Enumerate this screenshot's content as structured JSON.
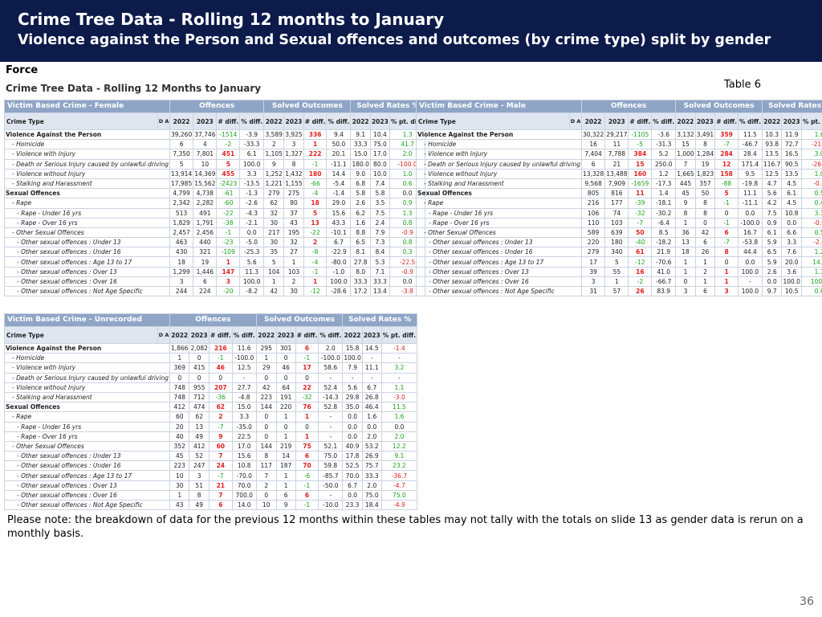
{
  "header": {
    "title": "Crime Tree Data - Rolling 12 months to January",
    "subtitle": "Violence against the Person and Sexual offences and outcomes (by crime type) split by gender"
  },
  "force_label": "Force",
  "sub_heading": "Crime Tree Data - Rolling 12 Months to January",
  "table_label": "Table 6",
  "columns": {
    "crime_type": "Crime Type",
    "offences": "Offences",
    "solved": "Solved Outcomes",
    "rates": "Solved Rates %",
    "y2022": "2022",
    "y2023": "2023",
    "diff": "# diff.",
    "pdiff": "% diff.",
    "ptdiff": "% pt. diff.",
    "da": "D A"
  },
  "tables": [
    {
      "title": "Victim Based Crime - Female",
      "rows": [
        [
          "Violence Against the Person",
          "39,260",
          "37,746",
          "-1514",
          "-3.9",
          "3,589",
          "3,925",
          "336",
          "9.4",
          "9.1",
          "10.4",
          "1.3"
        ],
        [
          "- Homicide",
          "6",
          "4",
          "-2",
          "-33.3",
          "2",
          "3",
          "1",
          "50.0",
          "33.3",
          "75.0",
          "41.7"
        ],
        [
          "- Violence with Injury",
          "7,350",
          "7,801",
          "451",
          "6.1",
          "1,105",
          "1,327",
          "222",
          "20.1",
          "15.0",
          "17.0",
          "2.0"
        ],
        [
          "- Death or Serious Injury caused by unlawful driving",
          "5",
          "10",
          "5",
          "100.0",
          "9",
          "8",
          "-1",
          "-11.1",
          "180.0",
          "80.0",
          "-100.0"
        ],
        [
          "- Violence without Injury",
          "13,914",
          "14,369",
          "455",
          "3.3",
          "1,252",
          "1,432",
          "180",
          "14.4",
          "9.0",
          "10.0",
          "1.0"
        ],
        [
          "- Stalking and Harassment",
          "17,985",
          "15,562",
          "-2423",
          "-13.5",
          "1,221",
          "1,155",
          "-66",
          "-5.4",
          "6.8",
          "7.4",
          "0.6"
        ],
        [
          "Sexual Offences",
          "4,799",
          "4,738",
          "-61",
          "-1.3",
          "279",
          "275",
          "-4",
          "-1.4",
          "5.8",
          "5.8",
          "0.0"
        ],
        [
          "- Rape",
          "2,342",
          "2,282",
          "-60",
          "-2.6",
          "62",
          "80",
          "18",
          "29.0",
          "2.6",
          "3.5",
          "0.9"
        ],
        [
          "- Rape - Under 16 yrs",
          "513",
          "491",
          "-22",
          "-4.3",
          "32",
          "37",
          "5",
          "15.6",
          "6.2",
          "7.5",
          "1.3"
        ],
        [
          "- Rape - Over 16 yrs",
          "1,829",
          "1,791",
          "-38",
          "-2.1",
          "30",
          "43",
          "13",
          "43.3",
          "1.6",
          "2.4",
          "0.8"
        ],
        [
          "- Other Sexual Offences",
          "2,457",
          "2,456",
          "-1",
          "0.0",
          "217",
          "195",
          "-22",
          "-10.1",
          "8.8",
          "7.9",
          "-0.9"
        ],
        [
          "- Other sexual offences : Under 13",
          "463",
          "440",
          "-23",
          "-5.0",
          "30",
          "32",
          "2",
          "6.7",
          "6.5",
          "7.3",
          "0.8"
        ],
        [
          "- Other sexual offences : Under 16",
          "430",
          "321",
          "-109",
          "-25.3",
          "35",
          "27",
          "-8",
          "-22.9",
          "8.1",
          "8.4",
          "0.3"
        ],
        [
          "- Other sexual offences : Age 13 to 17",
          "18",
          "19",
          "1",
          "5.6",
          "5",
          "1",
          "-4",
          "-80.0",
          "27.8",
          "5.3",
          "-22.5"
        ],
        [
          "- Other sexual offences : Over 13",
          "1,299",
          "1,446",
          "147",
          "11.3",
          "104",
          "103",
          "-1",
          "-1.0",
          "8.0",
          "7.1",
          "-0.9"
        ],
        [
          "- Other sexual offences : Over 16",
          "3",
          "6",
          "3",
          "100.0",
          "1",
          "2",
          "1",
          "100.0",
          "33.3",
          "33.3",
          "0.0"
        ],
        [
          "- Other sexual offences : Not Age Specific",
          "244",
          "224",
          "-20",
          "-8.2",
          "42",
          "30",
          "-12",
          "-28.6",
          "17.2",
          "13.4",
          "-3.8"
        ]
      ]
    },
    {
      "title": "Victim Based Crime - Male",
      "rows": [
        [
          "Violence Against the Person",
          "30,322",
          "29,217",
          "-1105",
          "-3.6",
          "3,132",
          "3,491",
          "359",
          "11.5",
          "10.3",
          "11.9",
          "1.6"
        ],
        [
          "- Homicide",
          "16",
          "11",
          "-5",
          "-31.3",
          "15",
          "8",
          "-7",
          "-46.7",
          "93.8",
          "72.7",
          "-21.0"
        ],
        [
          "- Violence with Injury",
          "7,404",
          "7,788",
          "384",
          "5.2",
          "1,000",
          "1,284",
          "284",
          "28.4",
          "13.5",
          "16.5",
          "3.0"
        ],
        [
          "- Death or Serious Injury caused by unlawful driving",
          "6",
          "21",
          "15",
          "250.0",
          "7",
          "19",
          "12",
          "171.4",
          "116.7",
          "90.5",
          "-26.2"
        ],
        [
          "- Violence without Injury",
          "13,328",
          "13,488",
          "160",
          "1.2",
          "1,665",
          "1,823",
          "158",
          "9.5",
          "12.5",
          "13.5",
          "1.0"
        ],
        [
          "- Stalking and Harassment",
          "9,568",
          "7,909",
          "-1659",
          "-17.3",
          "445",
          "357",
          "-88",
          "-19.8",
          "4.7",
          "4.5",
          "-0.1"
        ],
        [
          "Sexual Offences",
          "805",
          "816",
          "11",
          "1.4",
          "45",
          "50",
          "5",
          "11.1",
          "5.6",
          "6.1",
          "0.5"
        ],
        [
          "- Rape",
          "216",
          "177",
          "-39",
          "-18.1",
          "9",
          "8",
          "-1",
          "-11.1",
          "4.2",
          "4.5",
          "0.4"
        ],
        [
          "- Rape - Under 16 yrs",
          "106",
          "74",
          "-32",
          "-30.2",
          "8",
          "8",
          "0",
          "0.0",
          "7.5",
          "10.8",
          "3.3"
        ],
        [
          "- Rape - Over 16 yrs",
          "110",
          "103",
          "-7",
          "-6.4",
          "1",
          "0",
          "-1",
          "-100.0",
          "0.9",
          "0.0",
          "-0.9"
        ],
        [
          "- Other Sexual Offences",
          "589",
          "639",
          "50",
          "8.5",
          "36",
          "42",
          "6",
          "16.7",
          "6.1",
          "6.6",
          "0.5"
        ],
        [
          "- Other sexual offences : Under 13",
          "220",
          "180",
          "-40",
          "-18.2",
          "13",
          "6",
          "-7",
          "-53.8",
          "5.9",
          "3.3",
          "-2.6"
        ],
        [
          "- Other sexual offences : Under 16",
          "279",
          "340",
          "61",
          "21.9",
          "18",
          "26",
          "8",
          "44.4",
          "6.5",
          "7.6",
          "1.2"
        ],
        [
          "- Other sexual offences : Age 13 to 17",
          "17",
          "5",
          "-12",
          "-70.6",
          "1",
          "1",
          "0",
          "0.0",
          "5.9",
          "20.0",
          "14.1"
        ],
        [
          "- Other sexual offences : Over 13",
          "39",
          "55",
          "16",
          "41.0",
          "1",
          "2",
          "1",
          "100.0",
          "2.6",
          "3.6",
          "1.1"
        ],
        [
          "- Other sexual offences : Over 16",
          "3",
          "1",
          "-2",
          "-66.7",
          "0",
          "1",
          "1",
          "-",
          "0.0",
          "100.0",
          "100.0"
        ],
        [
          "- Other sexual offences : Not Age Specific",
          "31",
          "57",
          "26",
          "83.9",
          "3",
          "6",
          "3",
          "100.0",
          "9.7",
          "10.5",
          "0.8"
        ]
      ]
    },
    {
      "title": "Victim Based Crime - Unrecorded",
      "rows": [
        [
          "Violence Against the Person",
          "1,866",
          "2,082",
          "216",
          "11.6",
          "295",
          "301",
          "6",
          "2.0",
          "15.8",
          "14.5",
          "-1.4"
        ],
        [
          "- Homicide",
          "1",
          "0",
          "-1",
          "-100.0",
          "1",
          "0",
          "-1",
          "-100.0",
          "100.0",
          "-",
          "-"
        ],
        [
          "- Violence with Injury",
          "369",
          "415",
          "46",
          "12.5",
          "29",
          "46",
          "17",
          "58.6",
          "7.9",
          "11.1",
          "3.2"
        ],
        [
          "- Death or Serious Injury caused by unlawful driving",
          "0",
          "0",
          "0",
          "-",
          "0",
          "0",
          "0",
          "-",
          "-",
          "-",
          "-"
        ],
        [
          "- Violence without Injury",
          "748",
          "955",
          "207",
          "27.7",
          "42",
          "64",
          "22",
          "52.4",
          "5.6",
          "6.7",
          "1.1"
        ],
        [
          "- Stalking and Harassment",
          "748",
          "712",
          "-36",
          "-4.8",
          "223",
          "191",
          "-32",
          "-14.3",
          "29.8",
          "26.8",
          "-3.0"
        ],
        [
          "Sexual Offences",
          "412",
          "474",
          "62",
          "15.0",
          "144",
          "220",
          "76",
          "52.8",
          "35.0",
          "46.4",
          "11.5"
        ],
        [
          "- Rape",
          "60",
          "62",
          "2",
          "3.3",
          "0",
          "1",
          "1",
          "-",
          "0.0",
          "1.6",
          "1.6"
        ],
        [
          "- Rape - Under 16 yrs",
          "20",
          "13",
          "-7",
          "-35.0",
          "0",
          "0",
          "0",
          "-",
          "0.0",
          "0.0",
          "0.0"
        ],
        [
          "- Rape - Over 16 yrs",
          "40",
          "49",
          "9",
          "22.5",
          "0",
          "1",
          "1",
          "-",
          "0.0",
          "2.0",
          "2.0"
        ],
        [
          "- Other Sexual Offences",
          "352",
          "412",
          "60",
          "17.0",
          "144",
          "219",
          "75",
          "52.1",
          "40.9",
          "53.2",
          "12.2"
        ],
        [
          "- Other sexual offences : Under 13",
          "45",
          "52",
          "7",
          "15.6",
          "8",
          "14",
          "6",
          "75.0",
          "17.8",
          "26.9",
          "9.1"
        ],
        [
          "- Other sexual offences : Under 16",
          "223",
          "247",
          "24",
          "10.8",
          "117",
          "187",
          "70",
          "59.8",
          "52.5",
          "75.7",
          "23.2"
        ],
        [
          "- Other sexual offences : Age 13 to 17",
          "10",
          "3",
          "-7",
          "-70.0",
          "7",
          "1",
          "-6",
          "-85.7",
          "70.0",
          "33.3",
          "-36.7"
        ],
        [
          "- Other sexual offences : Over 13",
          "30",
          "51",
          "21",
          "70.0",
          "2",
          "1",
          "-1",
          "-50.0",
          "6.7",
          "2.0",
          "-4.7"
        ],
        [
          "- Other sexual offences : Over 16",
          "1",
          "8",
          "7",
          "700.0",
          "0",
          "6",
          "6",
          "-",
          "0.0",
          "75.0",
          "75.0"
        ],
        [
          "- Other sexual offences : Not Age Specific",
          "43",
          "49",
          "6",
          "14.0",
          "10",
          "9",
          "-1",
          "-10.0",
          "23.3",
          "18.4",
          "-4.9"
        ]
      ]
    }
  ],
  "note": "Please note: the breakdown of data for the previous 12 months within these tables may not tally with the totals on slide 13 as gender data is rerun on a monthly basis.",
  "page_number": "36",
  "colors": {
    "header_bg": "#0d1b4b",
    "table_header_bg": "#8ea5c6",
    "sub_header_bg": "#dfe6f0",
    "increase": "#e02020",
    "decrease": "#1aa31a"
  }
}
